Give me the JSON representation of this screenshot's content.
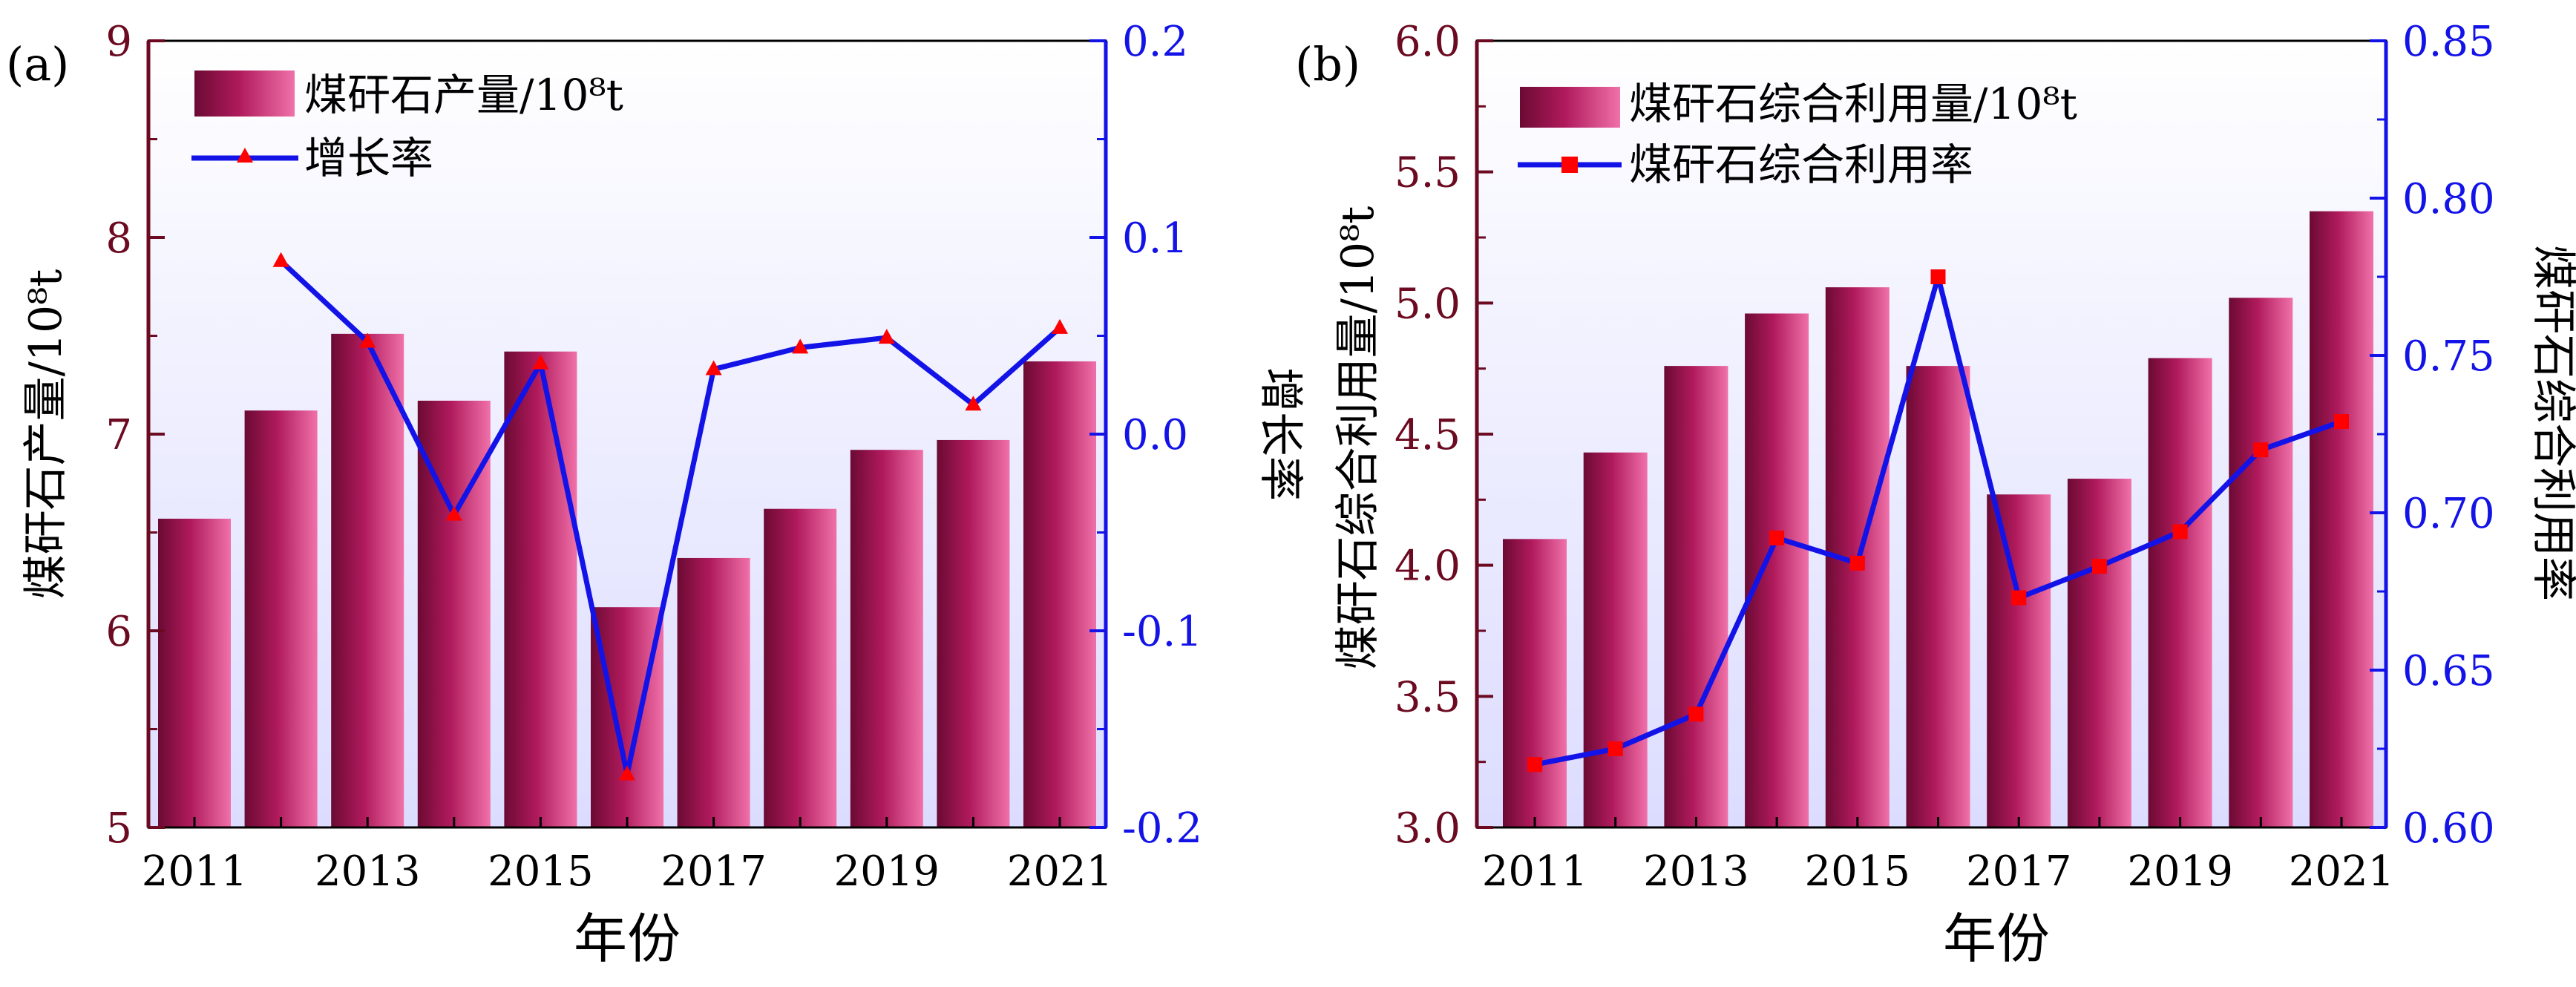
{
  "chart_data": [
    {
      "type": "bar",
      "panel_label": "(a)",
      "categories": [
        "2011",
        "2012",
        "2013",
        "2014",
        "2015",
        "2016",
        "2017",
        "2018",
        "2019",
        "2020",
        "2021"
      ],
      "tick_labels": [
        "2011",
        "2013",
        "2015",
        "2017",
        "2019",
        "2021"
      ],
      "xlabel": "年份",
      "ylabel": "煤矸石产量/10⁸t",
      "y2label": "增长率",
      "ylim": [
        5,
        9
      ],
      "yticks": [
        "5",
        "6",
        "7",
        "8",
        "9"
      ],
      "y2lim": [
        -0.2,
        0.2
      ],
      "y2ticks": [
        "-0.2",
        "-0.1",
        "0.0",
        "0.1",
        "0.2"
      ],
      "legend": [
        "煤矸石产量/10⁸t",
        "增长率"
      ],
      "series": [
        {
          "name": "煤矸石产量/10⁸t",
          "kind": "bar",
          "axis": "left",
          "values": [
            6.57,
            7.12,
            7.51,
            7.17,
            7.42,
            6.12,
            6.37,
            6.62,
            6.92,
            6.97,
            7.37
          ]
        },
        {
          "name": "增长率",
          "kind": "line",
          "axis": "right",
          "marker": "triangle",
          "x": [
            "2012",
            "2013",
            "2014",
            "2015",
            "2016",
            "2017",
            "2018",
            "2019",
            "2020",
            "2021"
          ],
          "values": [
            0.088,
            0.047,
            -0.041,
            0.036,
            -0.173,
            0.033,
            0.044,
            0.049,
            0.015,
            0.054
          ]
        }
      ]
    },
    {
      "type": "bar",
      "panel_label": "(b)",
      "categories": [
        "2011",
        "2012",
        "2013",
        "2014",
        "2015",
        "2016",
        "2017",
        "2018",
        "2019",
        "2020",
        "2021"
      ],
      "tick_labels": [
        "2011",
        "2013",
        "2015",
        "2017",
        "2019",
        "2021"
      ],
      "xlabel": "年份",
      "ylabel": "煤矸石综合利用量/10⁸t",
      "y2label": "煤矸石综合利用率",
      "ylim": [
        3.0,
        6.0
      ],
      "yticks": [
        "3.0",
        "3.5",
        "4.0",
        "4.5",
        "5.0",
        "5.5",
        "6.0"
      ],
      "y2lim": [
        0.6,
        0.85
      ],
      "y2ticks": [
        "0.60",
        "0.65",
        "0.70",
        "0.75",
        "0.80",
        "0.85"
      ],
      "legend": [
        "煤矸石综合利用量/10⁸t",
        "煤矸石综合利用率"
      ],
      "series": [
        {
          "name": "煤矸石综合利用量/10⁸t",
          "kind": "bar",
          "axis": "left",
          "values": [
            4.1,
            4.43,
            4.76,
            4.96,
            5.06,
            4.76,
            4.27,
            4.33,
            4.79,
            5.02,
            5.35
          ]
        },
        {
          "name": "煤矸石综合利用率",
          "kind": "line",
          "axis": "right",
          "marker": "square",
          "x": [
            "2011",
            "2012",
            "2013",
            "2014",
            "2015",
            "2016",
            "2017",
            "2018",
            "2019",
            "2020",
            "2021"
          ],
          "values": [
            0.62,
            0.625,
            0.636,
            0.692,
            0.684,
            0.775,
            0.673,
            0.683,
            0.694,
            0.72,
            0.729
          ]
        }
      ]
    }
  ],
  "colors": {
    "bar_dark": "#6b0a33",
    "bar_mid": "#b01a5c",
    "bar_light": "#f071a9",
    "line": "#1313e8",
    "marker": "#ff0000",
    "left_axis": "#6b0a20",
    "right_axis": "#1313e8",
    "plot_bg_top": "#ffffff",
    "plot_bg_bottom": "#dcdcff"
  }
}
